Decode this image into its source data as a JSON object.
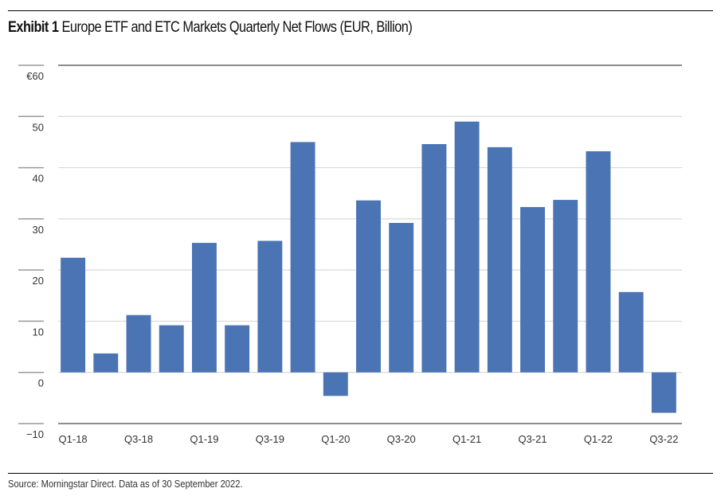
{
  "header": {
    "exhibit_label": "Exhibit 1",
    "title_text": "Europe ETF and ETC Markets Quarterly Net Flows (EUR, Billion)"
  },
  "footer": {
    "source": "Source: Morningstar Direct. Data as of 30 September 2022."
  },
  "colors": {
    "bar": "#4a74b4",
    "gridline": "#d9d9d9",
    "axis": "#8c8c8c"
  },
  "chart_data": {
    "type": "bar",
    "title": "Exhibit 1 Europe ETF and ETC Markets Quarterly Net Flows (EUR, Billion)",
    "xlabel": "",
    "ylabel": "",
    "ylim": [
      -10,
      60
    ],
    "yticks": [
      60,
      50,
      40,
      30,
      20,
      10,
      0,
      -10
    ],
    "ytick_labels": [
      "€60",
      "50",
      "40",
      "30",
      "20",
      "10",
      "0",
      "−10"
    ],
    "grid": true,
    "legend": "none",
    "categories": [
      "Q1-18",
      "Q2-18",
      "Q3-18",
      "Q4-18",
      "Q1-19",
      "Q2-19",
      "Q3-19",
      "Q4-19",
      "Q1-20",
      "Q2-20",
      "Q3-20",
      "Q4-20",
      "Q1-21",
      "Q2-21",
      "Q3-21",
      "Q4-21",
      "Q1-22",
      "Q2-22",
      "Q3-22"
    ],
    "xtick_labels": [
      "Q1-18",
      "",
      "Q3-18",
      "",
      "Q1-19",
      "",
      "Q3-19",
      "",
      "Q1-20",
      "",
      "Q3-20",
      "",
      "Q1-21",
      "",
      "Q3-21",
      "",
      "Q1-22",
      "",
      "Q3-22"
    ],
    "values": [
      22.4,
      3.7,
      11.2,
      9.2,
      25.3,
      9.2,
      25.7,
      45.0,
      -4.6,
      33.6,
      29.2,
      44.6,
      49.0,
      44.0,
      32.3,
      33.7,
      43.2,
      15.7,
      -7.9
    ]
  }
}
